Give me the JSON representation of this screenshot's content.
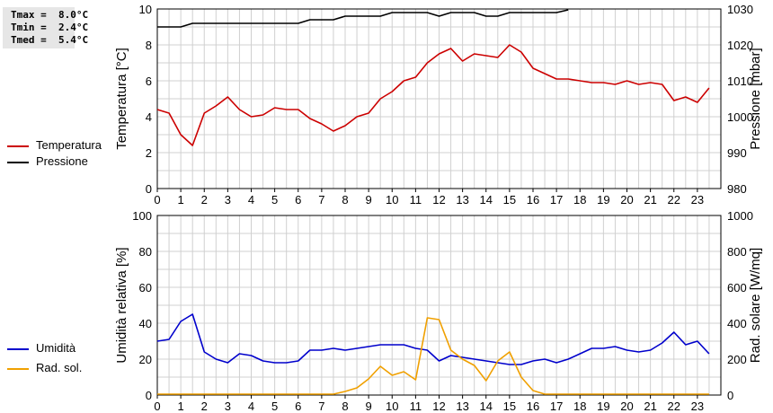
{
  "stats": {
    "tmax": "Tmax =  8.0°C",
    "tmin": "Tmin =  2.4°C",
    "tmed": "Tmed =  5.4°C"
  },
  "colors": {
    "temperature": "#cc0000",
    "pressure": "#000000",
    "humidity": "#0000cc",
    "solar": "#f0a000",
    "grid": "#d0d0d0"
  },
  "chart_data": [
    {
      "type": "line",
      "title": "",
      "xlabel": "",
      "ylabel": "Temperatura [°C]",
      "y2label": "Pressione [mbar]",
      "xlim": [
        0,
        24
      ],
      "ylim": [
        0,
        10
      ],
      "y2lim": [
        980,
        1030
      ],
      "x_ticks": [
        "0",
        "1",
        "2",
        "3",
        "4",
        "5",
        "6",
        "7",
        "8",
        "9",
        "10",
        "11",
        "12",
        "13",
        "14",
        "15",
        "16",
        "17",
        "18",
        "19",
        "20",
        "21",
        "22",
        "23"
      ],
      "y_ticks": [
        "0",
        "2",
        "4",
        "6",
        "8",
        "10"
      ],
      "y2_ticks": [
        "980",
        "990",
        "1000",
        "1010",
        "1020",
        "1030"
      ],
      "grid": true,
      "legend": "left",
      "series": [
        {
          "name": "Temperatura",
          "axis": "left",
          "color": "#cc0000",
          "x": [
            0,
            0.5,
            1,
            1.5,
            2,
            2.5,
            3,
            3.5,
            4,
            4.5,
            5,
            5.5,
            6,
            6.5,
            7,
            7.5,
            8,
            8.5,
            9,
            9.5,
            10,
            10.5,
            11,
            11.5,
            12,
            12.5,
            13,
            13.5,
            14,
            14.5,
            15,
            15.5,
            16,
            16.5,
            17,
            17.5,
            18,
            18.5,
            19,
            19.5,
            20,
            20.5,
            21,
            21.5,
            22,
            22.5,
            23,
            23.5
          ],
          "y": [
            4.4,
            4.2,
            3.0,
            2.4,
            4.2,
            4.6,
            5.1,
            4.4,
            4.0,
            4.1,
            4.5,
            4.4,
            4.4,
            3.9,
            3.6,
            3.2,
            3.5,
            4.0,
            4.2,
            5.0,
            5.4,
            6.0,
            6.2,
            7.0,
            7.5,
            7.8,
            7.1,
            7.5,
            7.4,
            7.3,
            8.0,
            7.6,
            6.7,
            6.4,
            6.1,
            6.1,
            6.0,
            5.9,
            5.9,
            5.8,
            6.0,
            5.8,
            5.9,
            5.8,
            4.9,
            5.1,
            4.8,
            5.6
          ]
        },
        {
          "name": "Pressione",
          "axis": "right",
          "color": "#000000",
          "x": [
            0,
            0.5,
            1,
            1.5,
            2,
            2.5,
            3,
            3.5,
            4,
            4.5,
            5,
            5.5,
            6,
            6.5,
            7,
            7.5,
            8,
            8.5,
            9,
            9.5,
            10,
            10.5,
            11,
            11.5,
            12,
            12.5,
            13,
            13.5,
            14,
            14.5,
            15,
            15.5,
            16,
            16.5,
            17,
            17.5
          ],
          "y": [
            1025,
            1025,
            1025,
            1026,
            1026,
            1026,
            1026,
            1026,
            1026,
            1026,
            1026,
            1026,
            1026,
            1027,
            1027,
            1027,
            1028,
            1028,
            1028,
            1028,
            1029,
            1029,
            1029,
            1029,
            1028,
            1029,
            1029,
            1029,
            1028,
            1028,
            1029,
            1029,
            1029,
            1029,
            1029,
            1030
          ]
        }
      ]
    },
    {
      "type": "line",
      "title": "",
      "xlabel": "",
      "ylabel": "Umidità relativa [%]",
      "y2label": "Rad. solare [W/mq]",
      "xlim": [
        0,
        24
      ],
      "ylim": [
        0,
        100
      ],
      "y2lim": [
        0,
        1000
      ],
      "x_ticks": [
        "0",
        "1",
        "2",
        "3",
        "4",
        "5",
        "6",
        "7",
        "8",
        "9",
        "10",
        "11",
        "12",
        "13",
        "14",
        "15",
        "16",
        "17",
        "18",
        "19",
        "20",
        "21",
        "22",
        "23"
      ],
      "y_ticks": [
        "0",
        "20",
        "40",
        "60",
        "80",
        "100"
      ],
      "y2_ticks": [
        "0",
        "200",
        "400",
        "600",
        "800",
        "1000"
      ],
      "grid": true,
      "legend": "left",
      "series": [
        {
          "name": "Umidità",
          "axis": "left",
          "color": "#0000cc",
          "x": [
            0,
            0.5,
            1,
            1.5,
            2,
            2.5,
            3,
            3.5,
            4,
            4.5,
            5,
            5.5,
            6,
            6.5,
            7,
            7.5,
            8,
            8.5,
            9,
            9.5,
            10,
            10.5,
            11,
            11.5,
            12,
            12.5,
            13,
            13.5,
            14,
            14.5,
            15,
            15.5,
            16,
            16.5,
            17,
            17.5,
            18,
            18.5,
            19,
            19.5,
            20,
            20.5,
            21,
            21.5,
            22,
            22.5,
            23,
            23.5
          ],
          "y": [
            30,
            31,
            41,
            45,
            24,
            20,
            18,
            23,
            22,
            19,
            18,
            18,
            19,
            25,
            25,
            26,
            25,
            26,
            27,
            28,
            28,
            28,
            26,
            25,
            19,
            22,
            21,
            20,
            19,
            18,
            17,
            17,
            19,
            20,
            18,
            20,
            23,
            26,
            26,
            27,
            25,
            24,
            25,
            29,
            35,
            28,
            30,
            23
          ]
        },
        {
          "name": "Rad. sol.",
          "axis": "right",
          "color": "#f0a000",
          "x": [
            0,
            0.5,
            1,
            1.5,
            2,
            2.5,
            3,
            3.5,
            4,
            4.5,
            5,
            5.5,
            6,
            6.5,
            7,
            7.5,
            8,
            8.5,
            9,
            9.5,
            10,
            10.5,
            11,
            11.5,
            12,
            12.5,
            13,
            13.5,
            14,
            14.5,
            15,
            15.5,
            16,
            16.5,
            17,
            17.5,
            18,
            18.5,
            19,
            19.5,
            20,
            20.5,
            21,
            21.5,
            22,
            22.5,
            23,
            23.5
          ],
          "y": [
            5,
            5,
            5,
            5,
            5,
            5,
            5,
            5,
            5,
            5,
            5,
            5,
            5,
            5,
            5,
            5,
            20,
            40,
            90,
            160,
            110,
            130,
            85,
            430,
            420,
            250,
            200,
            165,
            80,
            190,
            240,
            100,
            25,
            5,
            5,
            5,
            5,
            5,
            5,
            5,
            5,
            5,
            5,
            5,
            5,
            5,
            5,
            5
          ]
        }
      ]
    }
  ]
}
